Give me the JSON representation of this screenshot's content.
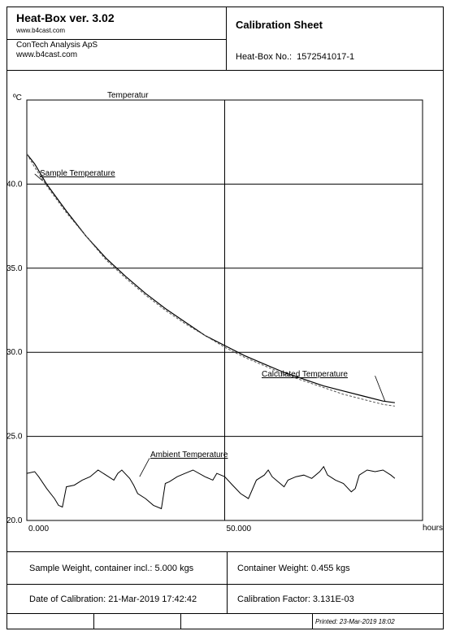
{
  "header": {
    "app_title": "Heat-Box ver. 3.02",
    "app_url": "www.b4cast.com",
    "company_name": "ConTech Analysis ApS",
    "company_url": "www.b4cast.com",
    "sheet_title": "Calibration Sheet",
    "heatbox_label": "Heat-Box No.:",
    "heatbox_number": "1572541017-1"
  },
  "chart_data": {
    "type": "line",
    "title": "Temperatur",
    "ylabel": "ºC",
    "xlabel": "hours",
    "xlim": [
      0,
      100
    ],
    "ylim": [
      20,
      45
    ],
    "x_ticks": [
      0,
      50
    ],
    "x_tick_labels": [
      "0.000",
      "50.000"
    ],
    "y_ticks": [
      20,
      25,
      30,
      35,
      40
    ],
    "y_tick_labels": [
      "20.0",
      "25.0",
      "30.0",
      "35.0",
      "40.0"
    ],
    "grid": true,
    "series": [
      {
        "name": "Sample Temperature",
        "style": "solid",
        "x": [
          0,
          2,
          5,
          10,
          15,
          20,
          25,
          30,
          35,
          40,
          45,
          50,
          55,
          60,
          65,
          70,
          75,
          80,
          85,
          90,
          93
        ],
        "y": [
          41.8,
          41.2,
          40.0,
          38.4,
          36.9,
          35.6,
          34.5,
          33.5,
          32.6,
          31.8,
          31.0,
          30.4,
          29.8,
          29.3,
          28.8,
          28.4,
          28.0,
          27.7,
          27.4,
          27.1,
          27.0
        ]
      },
      {
        "name": "Calculated Temperature",
        "style": "dashed",
        "x": [
          0,
          2,
          5,
          10,
          15,
          20,
          25,
          30,
          35,
          40,
          45,
          50,
          55,
          60,
          65,
          70,
          75,
          80,
          85,
          90,
          93
        ],
        "y": [
          41.8,
          41.0,
          39.9,
          38.3,
          36.9,
          35.5,
          34.4,
          33.4,
          32.5,
          31.7,
          31.0,
          30.3,
          29.7,
          29.2,
          28.7,
          28.3,
          27.9,
          27.5,
          27.2,
          26.9,
          26.8
        ]
      },
      {
        "name": "Ambient Temperature",
        "style": "solid",
        "x": [
          0,
          2,
          3,
          5,
          7,
          8,
          9,
          10,
          12,
          14,
          16,
          17,
          18,
          20,
          22,
          23,
          24,
          26,
          27,
          28,
          30,
          32,
          34,
          35,
          36,
          38,
          40,
          42,
          45,
          47,
          48,
          50,
          52,
          54,
          56,
          58,
          60,
          61,
          62,
          64,
          65,
          66,
          68,
          70,
          72,
          74,
          75,
          76,
          78,
          80,
          82,
          83,
          84,
          86,
          88,
          90,
          92,
          93
        ],
        "y": [
          22.8,
          22.9,
          22.6,
          21.9,
          21.3,
          20.9,
          20.8,
          22.0,
          22.1,
          22.4,
          22.6,
          22.8,
          23.0,
          22.7,
          22.4,
          22.8,
          23.0,
          22.5,
          22.1,
          21.6,
          21.3,
          20.9,
          20.7,
          22.2,
          22.3,
          22.6,
          22.8,
          23.0,
          22.6,
          22.4,
          22.8,
          22.6,
          22.1,
          21.6,
          21.3,
          22.4,
          22.7,
          23.0,
          22.6,
          22.2,
          22.0,
          22.4,
          22.6,
          22.7,
          22.5,
          22.9,
          23.2,
          22.7,
          22.4,
          22.2,
          21.7,
          21.9,
          22.7,
          23.0,
          22.9,
          23.0,
          22.7,
          22.5
        ]
      }
    ],
    "annotations": [
      "Sample Temperature",
      "Calculated Temperature",
      "Ambient Temperature"
    ]
  },
  "footer": {
    "sample_weight": "Sample Weight, container incl.: 5.000 kgs",
    "container_weight": "Container Weight: 0.455 kgs",
    "date_of_calibration": "Date of Calibration: 21-Mar-2019 17:42:42",
    "calibration_factor": "Calibration Factor: 3.131E-03",
    "printed": "Printed: 23-Mar-2019 18:02"
  }
}
